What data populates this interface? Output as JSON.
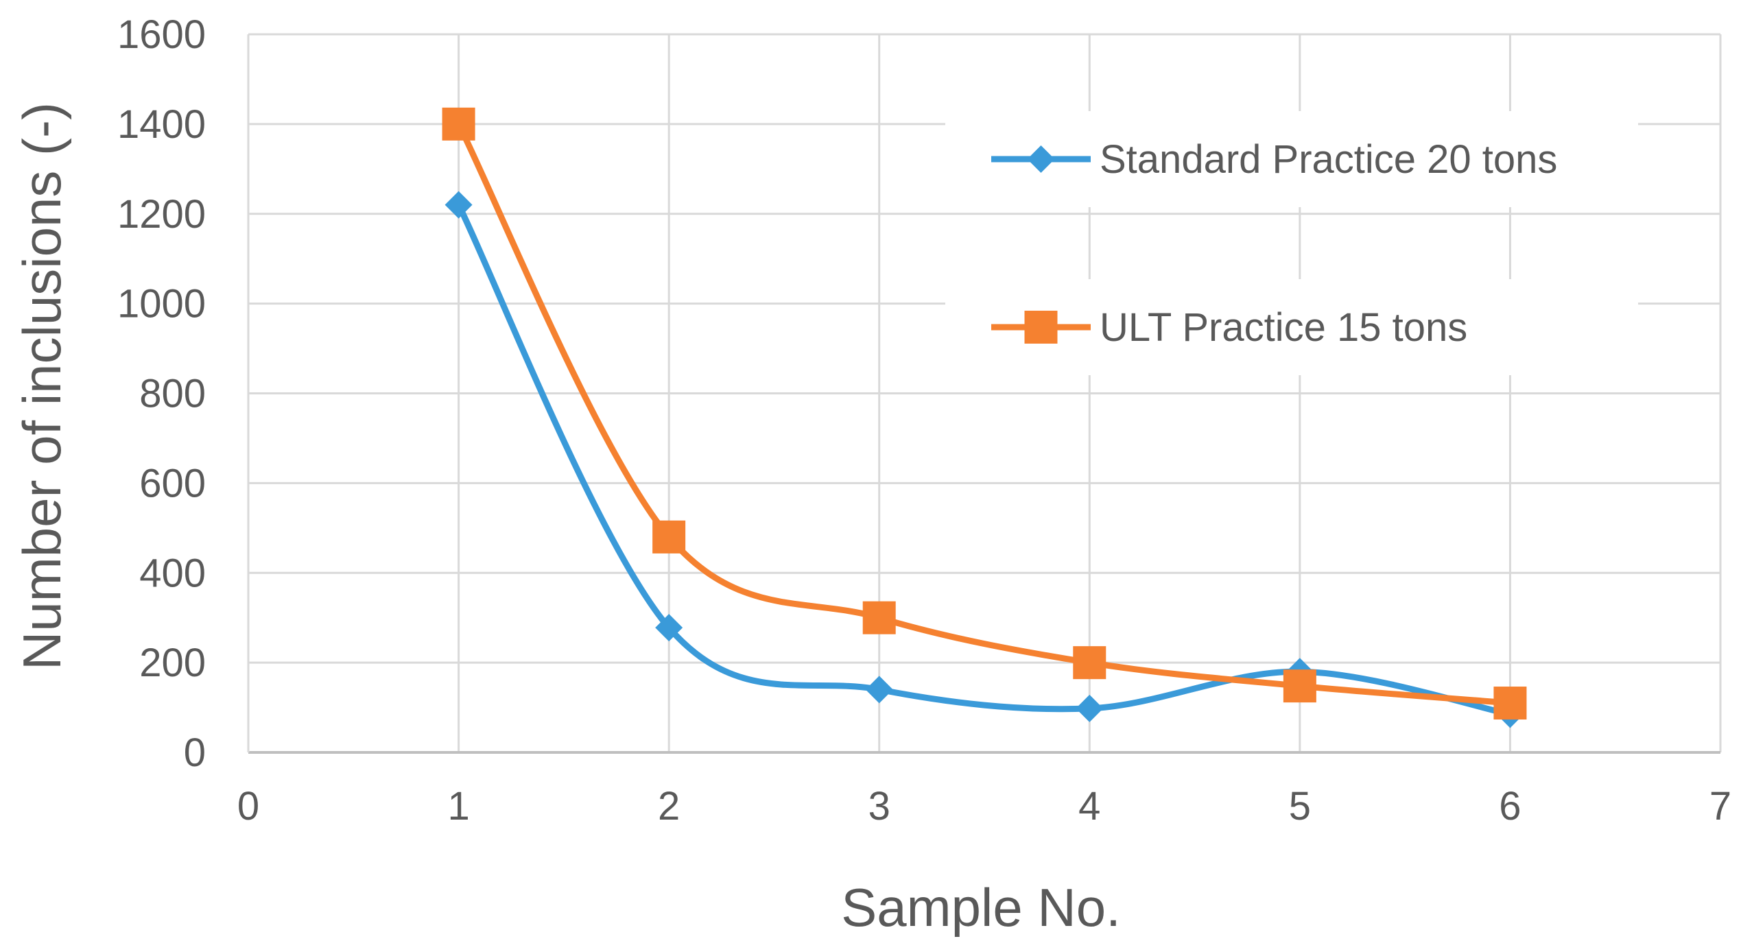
{
  "chart_data": {
    "type": "scatter",
    "xlabel": "Sample No.",
    "ylabel": "Number of inclusions (-)",
    "xlim": [
      0,
      7
    ],
    "ylim": [
      0,
      1600
    ],
    "x_ticks": [
      0,
      1,
      2,
      3,
      4,
      5,
      6,
      7
    ],
    "y_ticks": [
      0,
      200,
      400,
      600,
      800,
      1000,
      1200,
      1400,
      1600
    ],
    "grid": true,
    "smooth": true,
    "legend_position": "top-right",
    "series": [
      {
        "name": "Standard Practice 20 tons",
        "color": "#3a9ad9",
        "marker": "diamond",
        "x": [
          1,
          2,
          3,
          4,
          5,
          6
        ],
        "y": [
          1220,
          278,
          140,
          98,
          180,
          85
        ]
      },
      {
        "name": "ULT Practice 15 tons",
        "color": "#f58130",
        "marker": "square",
        "x": [
          1,
          2,
          3,
          4,
          5,
          6
        ],
        "y": [
          1400,
          480,
          300,
          200,
          148,
          110
        ]
      }
    ]
  }
}
